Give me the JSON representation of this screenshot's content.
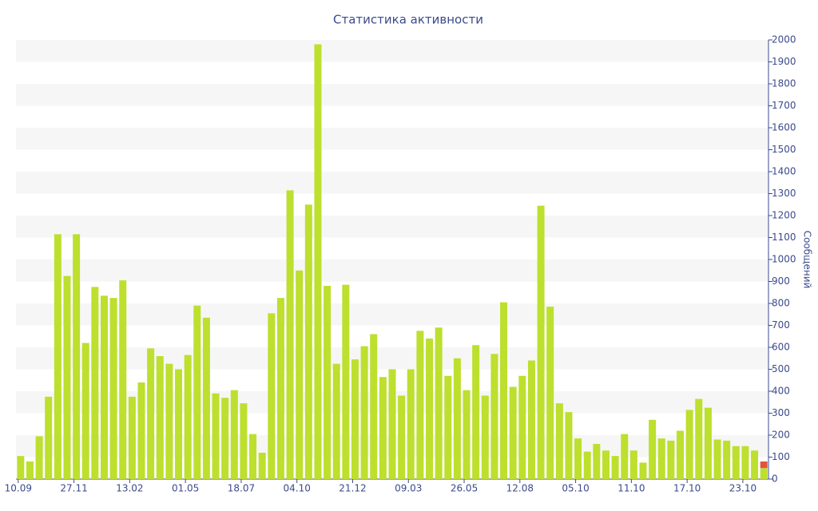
{
  "chart_data": {
    "type": "bar",
    "title": "Статистика активности",
    "y_axis_label": "Сообщений",
    "categories": [
      "10.09",
      null,
      null,
      null,
      null,
      null,
      "27.11",
      null,
      null,
      null,
      null,
      null,
      "13.02",
      null,
      null,
      null,
      null,
      null,
      "01.05",
      null,
      null,
      null,
      null,
      null,
      "18.07",
      null,
      null,
      null,
      null,
      null,
      "04.10",
      null,
      null,
      null,
      null,
      null,
      "21.12",
      null,
      null,
      null,
      null,
      null,
      "09.03",
      null,
      null,
      null,
      null,
      null,
      "26.05",
      null,
      null,
      null,
      null,
      null,
      "12.08",
      null,
      null,
      null,
      null,
      null,
      "05.10",
      null,
      null,
      null,
      null,
      null,
      "11.10",
      null,
      null,
      null,
      null,
      null,
      "17.10",
      null,
      null,
      null,
      null,
      null,
      "23.10",
      null,
      null
    ],
    "series": [
      {
        "color": "#bddf2e",
        "values": [
          105,
          80,
          195,
          375,
          1115,
          925,
          1115,
          620,
          875,
          835,
          825,
          905,
          375,
          440,
          595,
          560,
          525,
          500,
          565,
          790,
          735,
          390,
          370,
          405,
          345,
          205,
          120,
          755,
          825,
          1315,
          950,
          1250,
          1980,
          880,
          525,
          885,
          545,
          605,
          660,
          465,
          500,
          380,
          500,
          675,
          640,
          690,
          470,
          550,
          405,
          610,
          380,
          570,
          805,
          420,
          470,
          540,
          1245,
          785,
          345,
          305,
          185,
          125,
          160,
          130,
          105,
          205,
          130,
          75,
          270,
          185,
          175,
          220,
          315,
          365,
          325,
          180,
          175,
          150,
          150,
          130,
          50
        ]
      },
      {
        "color": "#e0543c",
        "values": [
          null,
          null,
          null,
          null,
          null,
          null,
          null,
          null,
          null,
          null,
          null,
          null,
          null,
          null,
          null,
          null,
          null,
          null,
          null,
          null,
          null,
          null,
          null,
          null,
          null,
          null,
          null,
          null,
          null,
          null,
          null,
          null,
          null,
          null,
          null,
          null,
          null,
          null,
          null,
          null,
          null,
          null,
          null,
          null,
          null,
          null,
          null,
          null,
          null,
          null,
          null,
          null,
          null,
          null,
          null,
          null,
          null,
          null,
          null,
          null,
          null,
          null,
          null,
          null,
          null,
          null,
          null,
          null,
          null,
          null,
          null,
          null,
          null,
          null,
          null,
          null,
          null,
          null,
          null,
          null,
          30
        ]
      }
    ],
    "stacked": true,
    "ylim": [
      0,
      2000
    ],
    "yticks": [
      0,
      100,
      200,
      300,
      400,
      500,
      600,
      700,
      800,
      900,
      1000,
      1100,
      1200,
      1300,
      1400,
      1500,
      1600,
      1700,
      1800,
      1900,
      2000
    ],
    "y_axis_side": "right",
    "grid": "bands"
  }
}
